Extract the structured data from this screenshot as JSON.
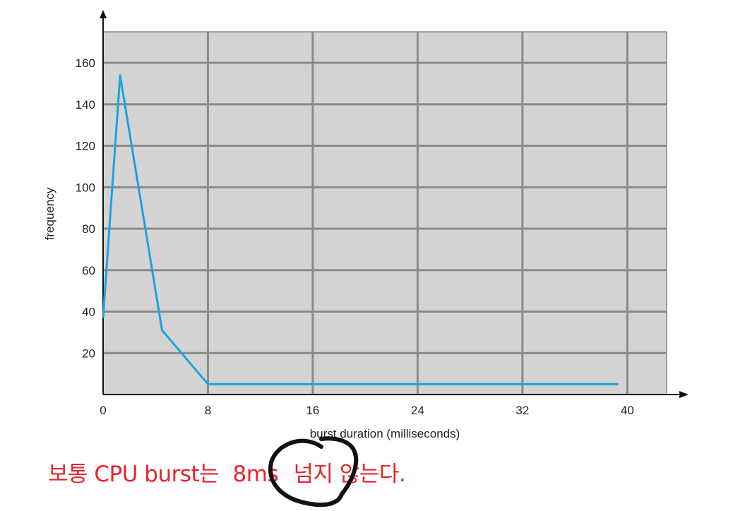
{
  "chart_data": {
    "type": "line",
    "title": "",
    "xlabel": "burst duration (milliseconds)",
    "ylabel": "frequency",
    "xlim": [
      0,
      43
    ],
    "ylim": [
      0,
      175
    ],
    "x_ticks": [
      0,
      8,
      16,
      24,
      32,
      40
    ],
    "y_ticks": [
      20,
      40,
      60,
      80,
      100,
      120,
      140,
      160
    ],
    "grid": true,
    "series": [
      {
        "color": "#1aa3e0",
        "points": [
          [
            0,
            37
          ],
          [
            1.3,
            154
          ],
          [
            4.5,
            31
          ],
          [
            8,
            5
          ],
          [
            39.3,
            5
          ]
        ]
      }
    ]
  },
  "colors": {
    "plot_background": "#d3d3d3",
    "grid": "#8a8a8a",
    "annotation_text": "#e8232c",
    "hand_circle": "#111111"
  },
  "annotation": {
    "prefix": "보통 CPU burst는",
    "highlight": "8ms",
    "suffix": "넘지 않는다."
  }
}
